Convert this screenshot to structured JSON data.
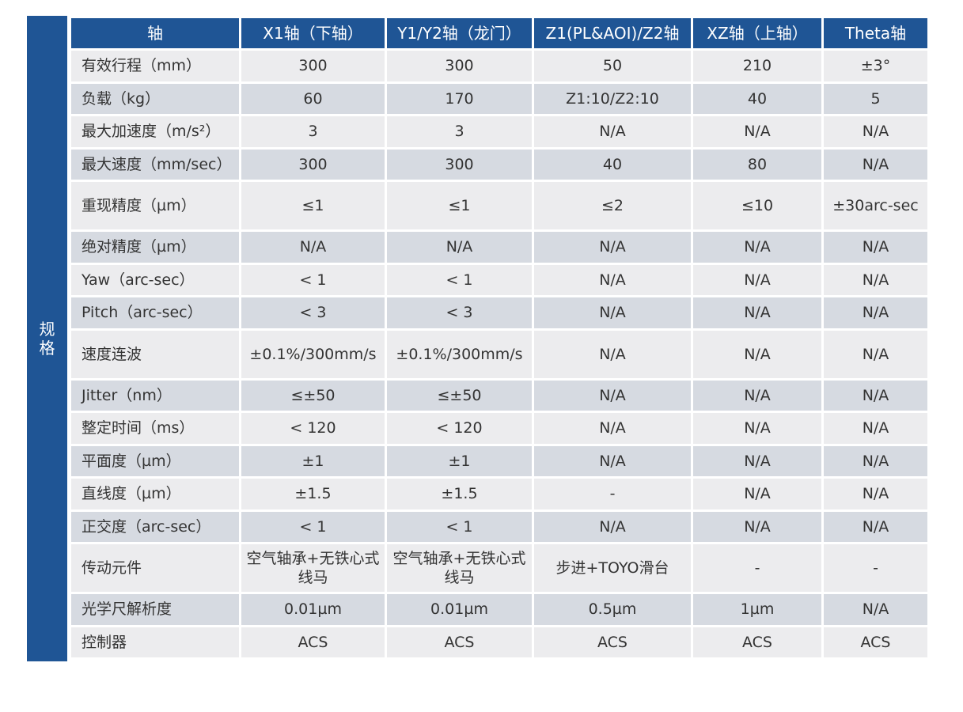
{
  "side_label": "规格",
  "headers": [
    "轴",
    "X1轴（下轴）",
    "Y1/Y2轴（龙门）",
    "Z1(PL&AOI)/Z2轴",
    "XZ轴（上轴）",
    "Theta轴"
  ],
  "rows": [
    {
      "cells": [
        "有效行程（mm）",
        "300",
        "300",
        "50",
        "210",
        "±3°"
      ]
    },
    {
      "cells": [
        "负载（kg）",
        "60",
        "170",
        "Z1:10/Z2:10",
        "40",
        "5"
      ]
    },
    {
      "cells": [
        "最大加速度（m/s²）",
        "3",
        "3",
        "N/A",
        "N/A",
        "N/A"
      ]
    },
    {
      "cells": [
        "最大速度（mm/sec）",
        "300",
        "300",
        "40",
        "80",
        "N/A"
      ]
    },
    {
      "cells": [
        "重现精度（µm）",
        "≤1",
        "≤1",
        "≤2",
        "≤10",
        "±30arc-sec"
      ]
    },
    {
      "cells": [
        "绝对精度（µm）",
        "N/A",
        "N/A",
        "N/A",
        "N/A",
        "N/A"
      ]
    },
    {
      "cells": [
        "Yaw（arc-sec）",
        "< 1",
        "< 1",
        "N/A",
        "N/A",
        "N/A"
      ]
    },
    {
      "cells": [
        "Pitch（arc-sec）",
        "< 3",
        "< 3",
        "N/A",
        "N/A",
        "N/A"
      ]
    },
    {
      "cells": [
        "速度连波",
        "±0.1%/300mm/s",
        "±0.1%/300mm/s",
        "N/A",
        "N/A",
        "N/A"
      ]
    },
    {
      "cells": [
        "Jitter（nm）",
        "≤±50",
        "≤±50",
        "N/A",
        "N/A",
        "N/A"
      ]
    },
    {
      "cells": [
        "整定时间（ms）",
        "< 120",
        "< 120",
        "N/A",
        "N/A",
        "N/A"
      ]
    },
    {
      "cells": [
        "平面度（µm）",
        "±1",
        "±1",
        "N/A",
        "N/A",
        "N/A"
      ]
    },
    {
      "cells": [
        "直线度（µm）",
        "±1.5",
        "±1.5",
        "-",
        "N/A",
        "N/A"
      ]
    },
    {
      "cells": [
        "正交度（arc-sec）",
        "< 1",
        "< 1",
        "N/A",
        "N/A",
        "N/A"
      ]
    },
    {
      "cells": [
        "传动元件",
        "空气轴承+无铁心式线马",
        "空气轴承+无铁心式线马",
        "步进+TOYO滑台",
        "-",
        "-"
      ]
    },
    {
      "cells": [
        "光学尺解析度",
        "0.01µm",
        "0.01µm",
        "0.5µm",
        "1µm",
        "N/A"
      ]
    },
    {
      "cells": [
        "控制器",
        "ACS",
        "ACS",
        "ACS",
        "ACS",
        "ACS"
      ]
    }
  ],
  "colors": {
    "header_bg": "#1f5595",
    "row_light": "#ececee",
    "row_dark": "#d6dae1",
    "text": "#333333"
  }
}
